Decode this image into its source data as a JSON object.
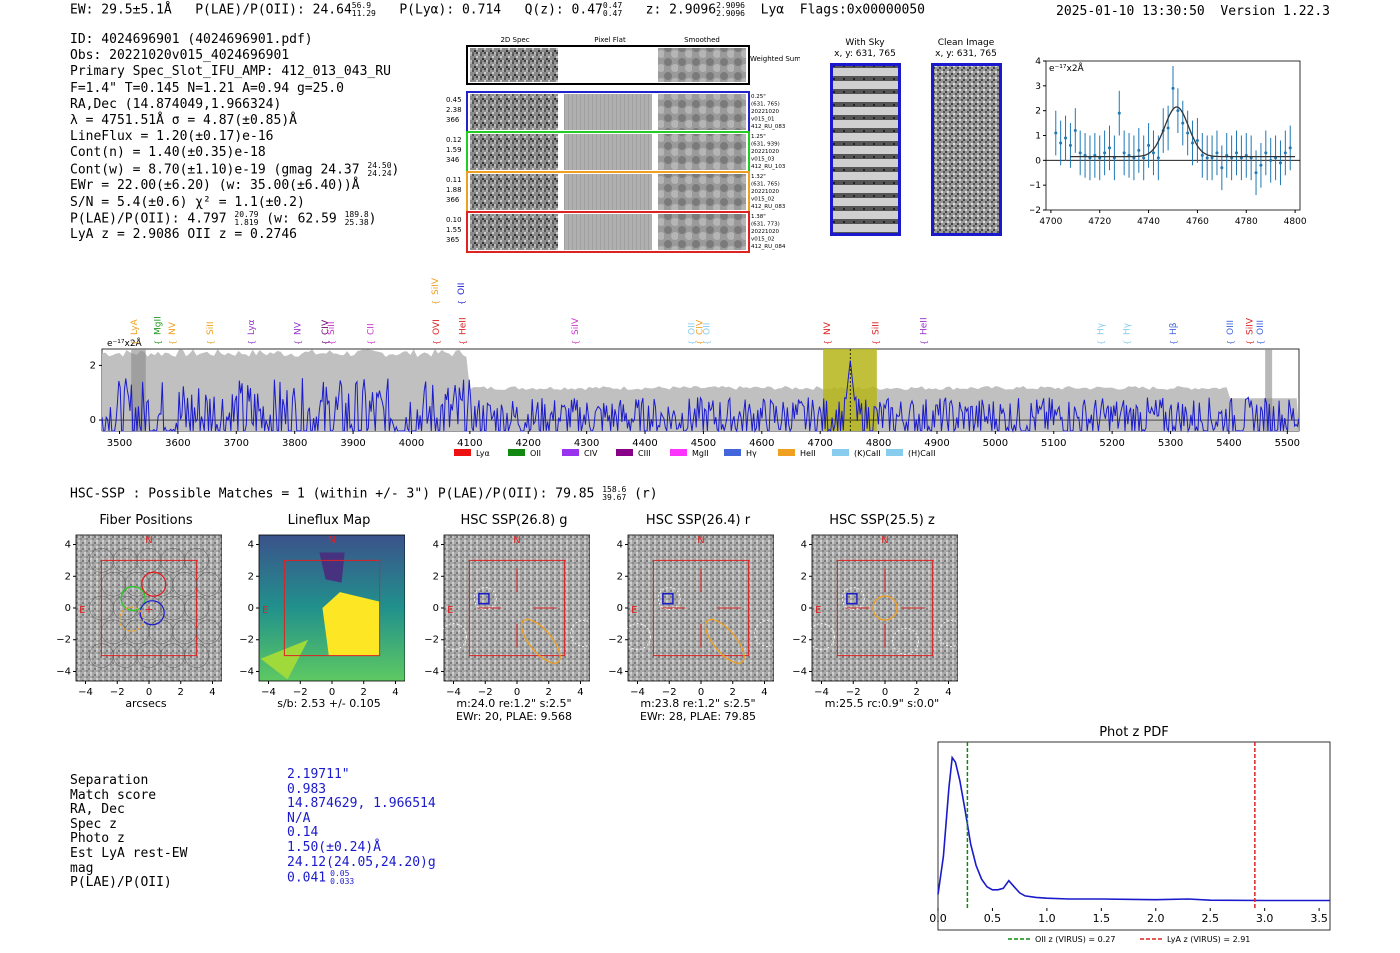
{
  "header": {
    "ew": "EW: 29.5±5.1Å",
    "plae_label": "P(LAE)/P(OII):",
    "plae_value": "24.64",
    "plae_hi": "56.9",
    "plae_lo": "11.29",
    "plya": "P(Lyα): 0.714",
    "qz_label": "Q(z): 0.47",
    "qz_hi": "0.47",
    "qz_lo": "0.47",
    "z_label": "z: 2.9096",
    "z_hi": "2.9096",
    "z_lo": "2.9096",
    "line": "Lyα",
    "flags": "Flags:0x00000050",
    "datetime": "2025-01-10 13:30:50",
    "version": "Version 1.22.3"
  },
  "info": {
    "id": "ID: 4024696901 (4024696901.pdf)",
    "obs": "Obs: 20221020v015_4024696901",
    "primary": "Primary Spec_Slot_IFU_AMP: 412_013_043_RU",
    "fwhm": "F=1.4\"  T=0.145  N=1.21  A=0.94  g=25.0",
    "radec": "RA,Dec (14.874049,1.966324)",
    "lambda": "λ = 4751.51Å  σ = 4.87(±0.85)Å",
    "lineflux": "LineFlux = 1.20(±0.17)e-16",
    "contn": "Cont(n) = 1.40(±0.35)e-18",
    "contw": "Cont(w) = 8.70(±1.10)e-19 (gmag 24.37",
    "contw_hi": "24.50",
    "contw_lo": "24.24",
    "ewr": "EWr = 22.00(±6.20) (w: 35.00(±6.40))Å",
    "sn": "S/N = 5.4(±0.6)  χ² = 1.1(±0.2)",
    "plae": "P(LAE)/P(OII): 4.797",
    "plae_hi": "20.79",
    "plae_lo": "1.819",
    "plae_w": "(w: 62.59",
    "plae_w_hi": "189.8",
    "plae_w_lo": "25.38",
    "lyaz": "LyA z = 2.9086  OII z = 0.2746"
  },
  "cutouts": {
    "col_2d": "2D Spec",
    "col_flat": "Pixel Flat",
    "col_smooth": "Smoothed",
    "weighted": "Weighted Sum",
    "rows": [
      {
        "left": [
          "0.45",
          "2.38",
          "366"
        ],
        "right": [
          "0.25\"",
          "(631, 765)",
          "20221020",
          "v015_01",
          "412_RU_083"
        ],
        "color": "#2222cc"
      },
      {
        "left": [
          "0.12",
          "1.59",
          "346"
        ],
        "right": [
          "1.25\"",
          "(631, 939)",
          "20221020",
          "v015_03",
          "412_RU_103"
        ],
        "color": "#22cc22"
      },
      {
        "left": [
          "0.11",
          "1.88",
          "366"
        ],
        "right": [
          "1.32\"",
          "(631, 765)",
          "20221020",
          "v015_02",
          "412_RU_083"
        ],
        "color": "#f0a020"
      },
      {
        "left": [
          "0.10",
          "1.55",
          "365"
        ],
        "right": [
          "1.38\"",
          "(631, 773)",
          "20221020",
          "v015_02",
          "412_RU_084"
        ],
        "color": "#dd2222"
      }
    ]
  },
  "sky": {
    "title": "With Sky",
    "coords": "x, y: 631, 765"
  },
  "clean": {
    "title": "Clean Image",
    "coords": "x, y: 631, 765"
  },
  "zoom_chart": {
    "type": "line",
    "ylabel": "e⁻¹⁷x2Å",
    "x_ticks": [
      "4700",
      "4720",
      "4740",
      "4760",
      "4780",
      "4800"
    ],
    "y_ticks": [
      "4",
      "3",
      "2",
      "1",
      "0",
      "−1",
      "−2"
    ],
    "xlim": [
      4698,
      4802
    ],
    "ylim": [
      -2,
      4
    ],
    "fit_center": 4751.5,
    "fit_sigma": 4.87,
    "fit_amp": 2.0,
    "fit_base": 0.15,
    "points_x": [
      4702,
      4704,
      4706,
      4708,
      4710,
      4712,
      4714,
      4716,
      4718,
      4720,
      4722,
      4724,
      4726,
      4728,
      4730,
      4732,
      4734,
      4736,
      4738,
      4740,
      4742,
      4744,
      4746,
      4748,
      4750,
      4752,
      4754,
      4756,
      4758,
      4760,
      4762,
      4764,
      4766,
      4768,
      4770,
      4772,
      4774,
      4776,
      4778,
      4780,
      4782,
      4784,
      4786,
      4788,
      4790,
      4792,
      4794,
      4796,
      4798
    ],
    "points_y": [
      1.1,
      0.7,
      0.9,
      0.6,
      1.2,
      0.3,
      0.2,
      0.1,
      0.2,
      0.1,
      0.3,
      0.5,
      0.1,
      1.9,
      0.3,
      0.2,
      0.1,
      0.4,
      0.1,
      0.6,
      0.3,
      0.1,
      1.2,
      1.3,
      2.9,
      2.0,
      1.5,
      1.1,
      0.7,
      0.8,
      0.2,
      0.1,
      0.1,
      0.3,
      -0.3,
      0.2,
      0.1,
      0.3,
      0.1,
      0.2,
      0.1,
      -0.5,
      -0.2,
      0.3,
      0.0,
      0.1,
      -0.1,
      0.3,
      0.5
    ],
    "errors": 0.9
  },
  "spectrum": {
    "type": "line",
    "ylabel": "e⁻¹⁷x2Å",
    "x_ticks": [
      "3500",
      "3600",
      "3700",
      "3800",
      "3900",
      "4000",
      "4100",
      "4200",
      "4300",
      "4400",
      "4500",
      "4600",
      "4700",
      "4800",
      "4900",
      "5000",
      "5100",
      "5200",
      "5300",
      "5400",
      "5500"
    ],
    "y_ticks": [
      "2",
      "0"
    ],
    "xlim": [
      3470,
      5520
    ],
    "ylim": [
      -0.4,
      2.6
    ],
    "highlight_range": [
      4705,
      4797
    ],
    "line_center": 4751.5,
    "markers": [
      {
        "label": "LyA",
        "x": 3525,
        "color": "#f0a020"
      },
      {
        "label": "MgII",
        "x": 3565,
        "color": "#229922"
      },
      {
        "label": "NV",
        "x": 3590,
        "color": "#f0a020"
      },
      {
        "label": "SiII",
        "x": 3655,
        "color": "#f0a020"
      },
      {
        "label": "Lyα",
        "x": 3725,
        "color": "#9933cc"
      },
      {
        "label": "NV",
        "x": 3805,
        "color": "#9933cc"
      },
      {
        "label": "CIV",
        "x": 3852,
        "color": "#660066"
      },
      {
        "label": "SiII",
        "x": 3862,
        "color": "#cc33cc"
      },
      {
        "label": "CII",
        "x": 3930,
        "color": "#cc33cc"
      },
      {
        "label": "SiIV",
        "x": 4040,
        "color": "#f0a020",
        "high": true
      },
      {
        "label": "OVI",
        "x": 4042,
        "color": "#dd2222"
      },
      {
        "label": "OII",
        "x": 4085,
        "color": "#2222cc",
        "high": true
      },
      {
        "label": "HeII",
        "x": 4087,
        "color": "#dd2222"
      },
      {
        "label": "SiIV",
        "x": 4280,
        "color": "#cc33cc"
      },
      {
        "label": "OII",
        "x": 4480,
        "color": "#88ccee"
      },
      {
        "label": "CIV",
        "x": 4493,
        "color": "#f0a020"
      },
      {
        "label": "OII",
        "x": 4505,
        "color": "#88ccee"
      },
      {
        "label": "NV",
        "x": 4712,
        "color": "#dd2222"
      },
      {
        "label": "SiII",
        "x": 4795,
        "color": "#dd2222"
      },
      {
        "label": "HeII",
        "x": 4877,
        "color": "#9933cc"
      },
      {
        "label": "Hγ",
        "x": 5180,
        "color": "#88ccee"
      },
      {
        "label": "Hγ",
        "x": 5225,
        "color": "#88ccee"
      },
      {
        "label": "Hβ",
        "x": 5304,
        "color": "#4466dd"
      },
      {
        "label": "OIII",
        "x": 5402,
        "color": "#4466dd"
      },
      {
        "label": "SiIV",
        "x": 5435,
        "color": "#dd2222"
      },
      {
        "label": "OIII",
        "x": 5453,
        "color": "#4466dd"
      }
    ],
    "legend": [
      {
        "label": "Lyα",
        "color": "#ee1111"
      },
      {
        "label": "OII",
        "color": "#118811"
      },
      {
        "label": "CIV",
        "color": "#9933ee"
      },
      {
        "label": "CIII",
        "color": "#880088"
      },
      {
        "label": "MgII",
        "color": "#ff33ff"
      },
      {
        "label": "Hγ",
        "color": "#4466dd"
      },
      {
        "label": "HeII",
        "color": "#f0a020"
      },
      {
        "label": "(K)CaII",
        "color": "#88ccee"
      },
      {
        "label": "(H)CaII",
        "color": "#88ccee"
      }
    ]
  },
  "hsc": {
    "line": "HSC-SSP : Possible Matches = 1 (within +/- 3\")  P(LAE)/P(OII): 79.85",
    "hi": "158.6",
    "lo": "39.67",
    "band": "(r)"
  },
  "thumbs": [
    {
      "title": "Fiber Positions",
      "cap1": "arcsecs",
      "cap2": "",
      "kind": "fiber"
    },
    {
      "title": "Lineflux Map",
      "cap1": "s/b: 2.53 +/- 0.105",
      "cap2": "",
      "kind": "flux"
    },
    {
      "title": "HSC SSP(26.8) g",
      "cap1": "m:24.0  re:1.2\"  s:2.5\"",
      "cap2": "EWr: 20, PLAE: 9.568",
      "kind": "g"
    },
    {
      "title": "HSC SSP(26.4) r",
      "cap1": "m:23.8  re:1.2\"  s:2.5\"",
      "cap2": "EWr: 28, PLAE: 79.85",
      "kind": "r"
    },
    {
      "title": "HSC SSP(25.5) z",
      "cap1": "m:25.5 rc:0.9\"  s:0.0\"",
      "cap2": "",
      "kind": "z"
    }
  ],
  "thumb_axis": {
    "ticks": [
      "−4",
      "−2",
      "0",
      "2",
      "4"
    ],
    "yticks": [
      "4",
      "2",
      "0",
      "−2",
      "−4"
    ],
    "n": "N",
    "e": "E"
  },
  "match_table": {
    "labels": [
      "Separation",
      "Match score",
      "RA, Dec",
      "Spec z",
      "Photo z",
      "Est LyA rest-EW",
      "mag",
      "P(LAE)/P(OII)"
    ],
    "values": [
      "2.19711\"",
      "0.983",
      "14.874629, 1.966514",
      "N/A",
      "0.14",
      "1.50(±0.24)Å",
      "24.12(24.05,24.20)g",
      "0.041"
    ],
    "plae_hi": "0.05",
    "plae_lo": "0.033"
  },
  "photz": {
    "type": "line",
    "title": "Phot z PDF",
    "x_ticks": [
      "0.0",
      "0.5",
      "1.0",
      "1.5",
      "2.0",
      "2.5",
      "3.0",
      "3.5"
    ],
    "xlim": [
      0,
      3.6
    ],
    "x": [
      0.0,
      0.05,
      0.1,
      0.13,
      0.16,
      0.2,
      0.25,
      0.3,
      0.35,
      0.4,
      0.45,
      0.5,
      0.55,
      0.6,
      0.65,
      0.7,
      0.75,
      0.8,
      0.9,
      1.0,
      1.2,
      1.5,
      2.0,
      2.3,
      2.5,
      3.0,
      3.6
    ],
    "y": [
      0.05,
      0.3,
      0.75,
      0.95,
      0.92,
      0.8,
      0.6,
      0.38,
      0.24,
      0.15,
      0.1,
      0.08,
      0.08,
      0.09,
      0.14,
      0.1,
      0.06,
      0.04,
      0.03,
      0.025,
      0.02,
      0.02,
      0.015,
      0.02,
      0.012,
      0.01,
      0.01
    ],
    "oii_z": 0.27,
    "lya_z": 2.91,
    "legend_oii": "OII z (VIRUS) = 0.27",
    "legend_lya": "LyA z (VIRUS) = 2.91"
  }
}
